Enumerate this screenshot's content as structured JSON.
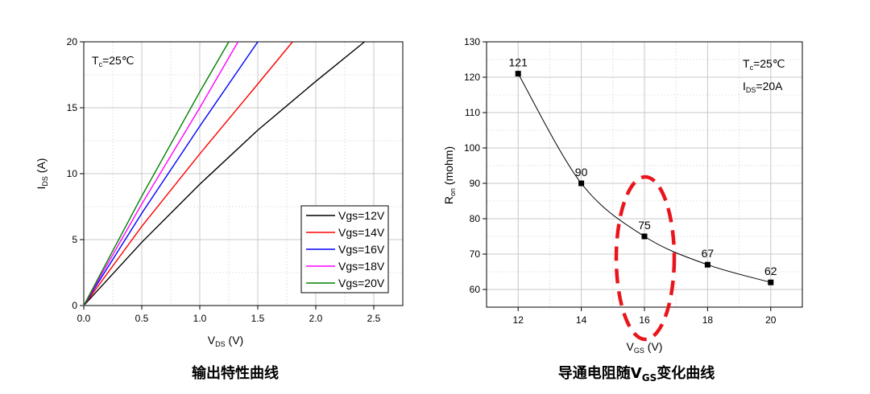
{
  "chart_data": [
    {
      "type": "line",
      "caption": "输出特性曲线",
      "annotation": "T",
      "annotation_sub": "c",
      "annotation_rest": "=25℃",
      "xlabel": "V",
      "xlabel_sub": "DS",
      "xlabel_rest": " (V)",
      "ylabel": "I",
      "ylabel_sub": "DS",
      "ylabel_rest": " (A)",
      "xlim": [
        0,
        2.75
      ],
      "ylim": [
        0,
        20
      ],
      "xticks": [
        "0.0",
        "0.5",
        "1.0",
        "1.5",
        "2.0",
        "2.5"
      ],
      "xtick_values": [
        0,
        0.5,
        1.0,
        1.5,
        2.0,
        2.5
      ],
      "yticks": [
        "0",
        "5",
        "10",
        "15",
        "20"
      ],
      "ytick_values": [
        0,
        5,
        10,
        15,
        20
      ],
      "legend_position": "bottom-right",
      "series": [
        {
          "name": "Vgs=12V",
          "color": "#000000",
          "x": [
            0,
            0.5,
            1.0,
            1.5,
            2.0,
            2.42
          ],
          "y": [
            0,
            4.8,
            9.2,
            13.3,
            17.0,
            20.0
          ]
        },
        {
          "name": "Vgs=14V",
          "color": "#ff0000",
          "x": [
            0,
            0.5,
            1.0,
            1.5,
            1.8
          ],
          "y": [
            0,
            6.0,
            11.5,
            16.8,
            20.0
          ]
        },
        {
          "name": "Vgs=16V",
          "color": "#0000ff",
          "x": [
            0,
            0.5,
            1.0,
            1.5
          ],
          "y": [
            0,
            7.0,
            13.6,
            20.0
          ]
        },
        {
          "name": "Vgs=18V",
          "color": "#ff00ff",
          "x": [
            0,
            0.5,
            1.0,
            1.33
          ],
          "y": [
            0,
            7.7,
            15.0,
            20.0
          ]
        },
        {
          "name": "Vgs=20V",
          "color": "#008000",
          "x": [
            0,
            0.5,
            1.0,
            1.25
          ],
          "y": [
            0,
            8.3,
            16.2,
            20.0
          ]
        }
      ]
    },
    {
      "type": "line",
      "caption": "导通电阻随V",
      "caption_sub": "GS",
      "caption_rest": "变化曲线",
      "annotation1": "T",
      "annotation1_sub": "c",
      "annotation1_rest": "=25℃",
      "annotation2": "I",
      "annotation2_sub": "DS",
      "annotation2_rest": "=20A",
      "xlabel": "V",
      "xlabel_sub": "GS",
      "xlabel_rest": " (V)",
      "ylabel": "R",
      "ylabel_sub": "on",
      "ylabel_rest": " (mohm)",
      "xlim": [
        11,
        21
      ],
      "ylim": [
        55,
        130
      ],
      "xticks": [
        "12",
        "14",
        "16",
        "18",
        "20"
      ],
      "xtick_values": [
        12,
        14,
        16,
        18,
        20
      ],
      "yticks": [
        "60",
        "70",
        "80",
        "90",
        "100",
        "110",
        "120",
        "130"
      ],
      "ytick_values": [
        60,
        70,
        80,
        90,
        100,
        110,
        120,
        130
      ],
      "series": [
        {
          "x": [
            12,
            14,
            16,
            18,
            20
          ],
          "y": [
            121,
            90,
            75,
            67,
            62
          ],
          "color": "#000000"
        }
      ],
      "data_labels": [
        "121",
        "90",
        "75",
        "67",
        "62"
      ],
      "highlight": {
        "shape": "dashed-ellipse",
        "color": "#e8161c",
        "around_x": 16
      }
    }
  ]
}
